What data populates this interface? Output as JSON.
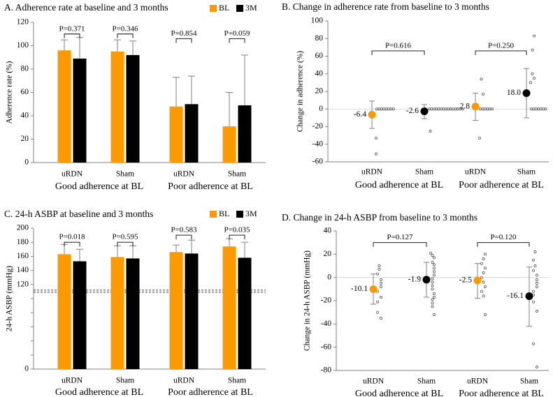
{
  "colors": {
    "bl": "#FF9900",
    "m3": "#000000",
    "axis": "#808080",
    "err": "#808080",
    "dots": "#404040"
  },
  "chart_data": [
    {
      "id": "A",
      "type": "bar",
      "title": "A. Adherence rate at baseline and 3 months",
      "ylabel": "Adherence rate (%)",
      "ylim": [
        0,
        120
      ],
      "yticks": [
        0,
        20,
        40,
        60,
        80,
        100,
        120
      ],
      "categories": [
        "uRDN",
        "Sham",
        "uRDN",
        "Sham"
      ],
      "groups": [
        "Good adherence at BL",
        "Poor adherence at BL"
      ],
      "legend": [
        "BL",
        "3M"
      ],
      "series": [
        {
          "name": "BL",
          "values": [
            96,
            95,
            48,
            31
          ],
          "err_upper": [
            105,
            105,
            73,
            60
          ]
        },
        {
          "name": "3M",
          "values": [
            89,
            92,
            50,
            49
          ],
          "err_upper": [
            107,
            104,
            74,
            92
          ]
        }
      ],
      "pvalues": [
        "P=0.371",
        "P=0.346",
        "P=0.854",
        "P=0.059"
      ],
      "p_bracket_y": [
        110,
        110,
        106,
        106
      ]
    },
    {
      "id": "B",
      "type": "scatter",
      "title": "B. Change in adherence rate from baseline to 3 months",
      "ylabel": "Change  in adherence (%)",
      "ylim": [
        -60,
        100
      ],
      "yticks": [
        -60,
        -40,
        -20,
        0,
        20,
        40,
        60,
        80,
        100
      ],
      "categories": [
        "uRDN",
        "Sham",
        "uRDN",
        "Sham"
      ],
      "groups": [
        "Good adherence at BL",
        "Poor adherence at BL"
      ],
      "means": [
        -6.4,
        -2.6,
        2.8,
        18.0
      ],
      "mean_labels": [
        "-6.4",
        "-2.6",
        "2.8",
        "18.0"
      ],
      "err_low": [
        -22,
        -11,
        -13,
        -10
      ],
      "err_high": [
        9,
        5,
        18,
        46
      ],
      "points": [
        [
          0,
          0,
          0,
          0,
          0,
          0,
          0,
          0,
          -33,
          -51
        ],
        [
          0,
          0,
          0,
          0,
          0,
          0,
          0,
          0,
          0,
          0,
          0,
          0,
          0,
          0,
          0,
          -25
        ],
        [
          0,
          0,
          0,
          0,
          0,
          0,
          17,
          34,
          -33
        ],
        [
          0,
          0,
          0,
          0,
          0,
          0,
          0,
          30,
          35,
          40,
          67,
          83
        ]
      ],
      "pvalues": [
        "P=0.616",
        "P=0.250"
      ],
      "p_bracket_y": 66
    },
    {
      "id": "C",
      "type": "bar",
      "title": "C. 24-h ASBP at baseline and 3 months",
      "ylabel": "24-h ASBP (mmHg)",
      "ylim": [
        0,
        200
      ],
      "yticks": [
        0,
        20,
        40,
        60,
        80,
        100,
        120,
        140,
        160,
        180,
        200
      ],
      "tick_labels": [
        "0",
        "",
        "",
        "",
        "",
        "",
        "120",
        "140",
        "160",
        "180",
        "200"
      ],
      "categories": [
        "uRDN",
        "Sham",
        "uRDN",
        "Sham"
      ],
      "groups": [
        "Good adherence at BL",
        "Poor adherence at BL"
      ],
      "legend": [
        "BL",
        "3M"
      ],
      "series": [
        {
          "name": "BL",
          "values": [
            163,
            159,
            166,
            174
          ],
          "err_upper": [
            177,
            175,
            176,
            185
          ]
        },
        {
          "name": "3M",
          "values": [
            153,
            157,
            164,
            158
          ],
          "err_upper": [
            170,
            175,
            183,
            180
          ]
        }
      ],
      "pvalues": [
        "P=0.018",
        "P=0.595",
        "P=0.583",
        "P=0.035"
      ],
      "p_bracket_y": [
        180,
        180,
        190,
        190
      ],
      "reference_lines": [
        112,
        109
      ]
    },
    {
      "id": "D",
      "type": "scatter",
      "title": "D. Change in 24-h ASBP from baseline to 3 months",
      "ylabel": "Change  in 24-h ASBP (mmHg)",
      "ylim": [
        -80,
        40
      ],
      "yticks": [
        -80,
        -60,
        -40,
        -20,
        0,
        20,
        40
      ],
      "categories": [
        "uRDN",
        "Sham",
        "uRDN",
        "Sham"
      ],
      "groups": [
        "Good adherence at BL",
        "Poor adherence at BL"
      ],
      "means": [
        -10.1,
        -1.9,
        -2.5,
        -16.1
      ],
      "mean_labels": [
        "-10.1",
        "-1.9",
        "-2.5",
        "-16.1"
      ],
      "err_low": [
        -23,
        -17,
        -18,
        -42
      ],
      "err_high": [
        3,
        13,
        12,
        9
      ],
      "points": [
        [
          10,
          7,
          3,
          -2,
          -5,
          -8,
          -12,
          -17,
          -21,
          -30,
          -35
        ],
        [
          21,
          19,
          17,
          13,
          11,
          8,
          5,
          2,
          -1,
          -4,
          -7,
          -10,
          -14,
          -17,
          -19,
          -22,
          -25,
          -32
        ],
        [
          20,
          16,
          12,
          8,
          4,
          0,
          -4,
          -8,
          -12,
          -16,
          -32
        ],
        [
          22,
          15,
          10,
          6,
          2,
          -2,
          -5,
          -8,
          -12,
          -15,
          -21,
          -29,
          -57,
          -77
        ]
      ],
      "pvalues": [
        "P=0.127",
        "P=0.120"
      ],
      "p_bracket_y": 30
    }
  ]
}
